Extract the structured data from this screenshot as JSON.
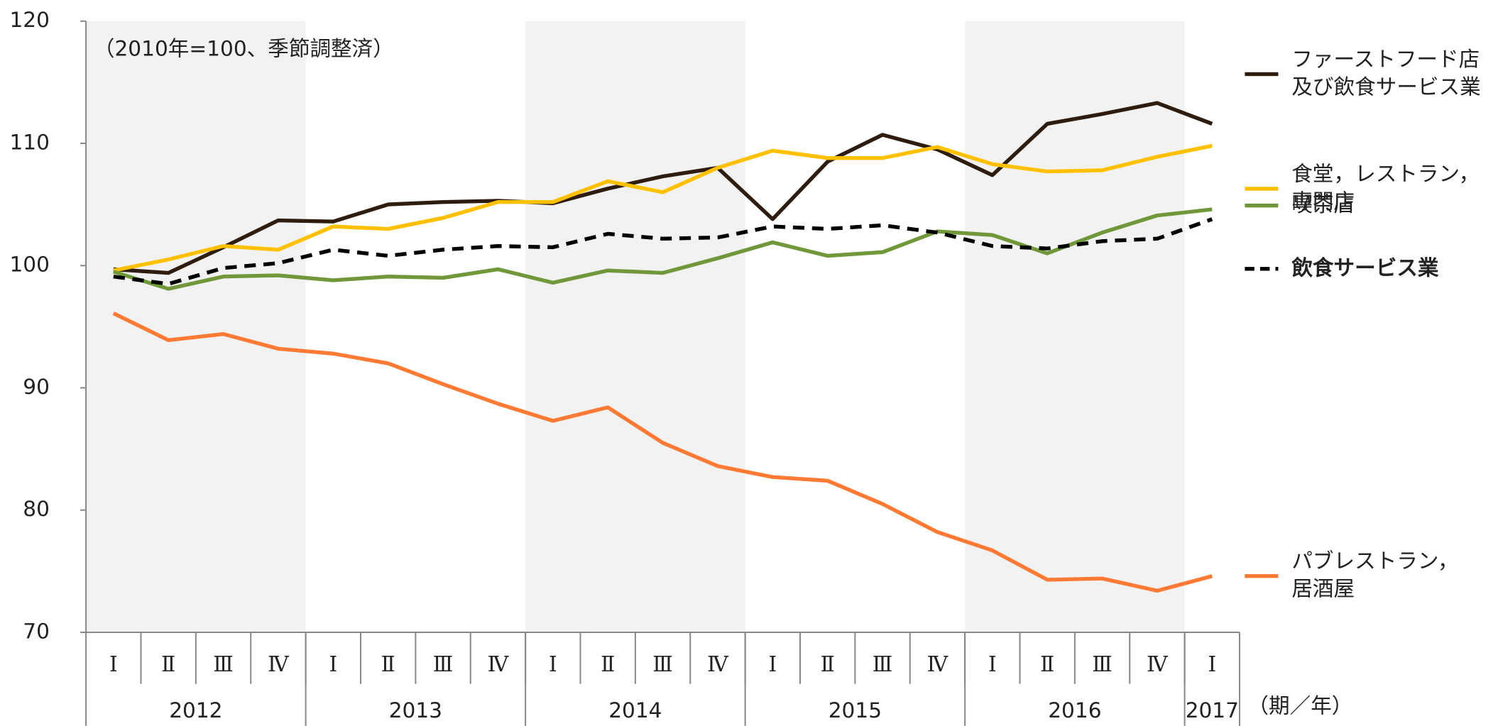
{
  "chart_data": {
    "type": "line",
    "annotation": "（2010年=100、季節調整済）",
    "x_unit": "（期／年）",
    "categories": [
      "Ⅰ",
      "Ⅱ",
      "Ⅲ",
      "Ⅳ",
      "Ⅰ",
      "Ⅱ",
      "Ⅲ",
      "Ⅳ",
      "Ⅰ",
      "Ⅱ",
      "Ⅲ",
      "Ⅳ",
      "Ⅰ",
      "Ⅱ",
      "Ⅲ",
      "Ⅳ",
      "Ⅰ",
      "Ⅱ",
      "Ⅲ",
      "Ⅳ",
      "Ⅰ"
    ],
    "year_groups": [
      {
        "label": "2012",
        "count": 4,
        "shaded": true
      },
      {
        "label": "2013",
        "count": 4,
        "shaded": false
      },
      {
        "label": "2014",
        "count": 4,
        "shaded": true
      },
      {
        "label": "2015",
        "count": 4,
        "shaded": false
      },
      {
        "label": "2016",
        "count": 4,
        "shaded": true
      },
      {
        "label": "2017",
        "count": 1,
        "shaded": false
      }
    ],
    "ylim": [
      70,
      120
    ],
    "yticks": [
      70,
      80,
      90,
      100,
      110,
      120
    ],
    "series": [
      {
        "name": [
          "ファーストフード店",
          "及び飲食サービス業"
        ],
        "color": "#2e1d0e",
        "dash": false,
        "values": [
          99.7,
          99.4,
          101.5,
          103.7,
          103.6,
          105.0,
          105.2,
          105.3,
          105.1,
          106.3,
          107.3,
          108.0,
          103.8,
          108.5,
          110.7,
          109.5,
          107.4,
          111.6,
          112.4,
          113.3,
          111.6
        ]
      },
      {
        "name": [
          "食堂，レストラン，",
          "専門店"
        ],
        "color": "#ffc000",
        "dash": false,
        "values": [
          99.6,
          100.5,
          101.6,
          101.3,
          103.2,
          103.0,
          103.9,
          105.2,
          105.2,
          106.9,
          106.0,
          108.0,
          109.4,
          108.8,
          108.8,
          109.7,
          108.3,
          107.7,
          107.8,
          108.9,
          109.8
        ]
      },
      {
        "name": [
          "喫茶店"
        ],
        "color": "#70973a",
        "dash": false,
        "values": [
          99.5,
          98.1,
          99.1,
          99.2,
          98.8,
          99.1,
          99.0,
          99.7,
          98.6,
          99.6,
          99.4,
          100.6,
          101.9,
          100.8,
          101.1,
          102.8,
          102.5,
          101.0,
          102.7,
          104.1,
          104.6
        ]
      },
      {
        "name": [
          "飲食サービス業"
        ],
        "color": "#000000",
        "dash": true,
        "values": [
          99.1,
          98.5,
          99.8,
          100.2,
          101.3,
          100.8,
          101.3,
          101.6,
          101.5,
          102.6,
          102.2,
          102.3,
          103.2,
          103.0,
          103.3,
          102.7,
          101.6,
          101.4,
          102.0,
          102.2,
          103.8
        ]
      },
      {
        "name": [
          "パブレストラン，",
          "居酒屋"
        ],
        "color": "#ff7a35",
        "dash": false,
        "values": [
          96.1,
          93.9,
          94.4,
          93.2,
          92.8,
          92.0,
          90.3,
          88.7,
          87.3,
          88.4,
          85.5,
          83.6,
          82.7,
          82.4,
          80.5,
          78.2,
          76.7,
          74.3,
          74.4,
          73.4,
          74.6
        ]
      }
    ]
  }
}
